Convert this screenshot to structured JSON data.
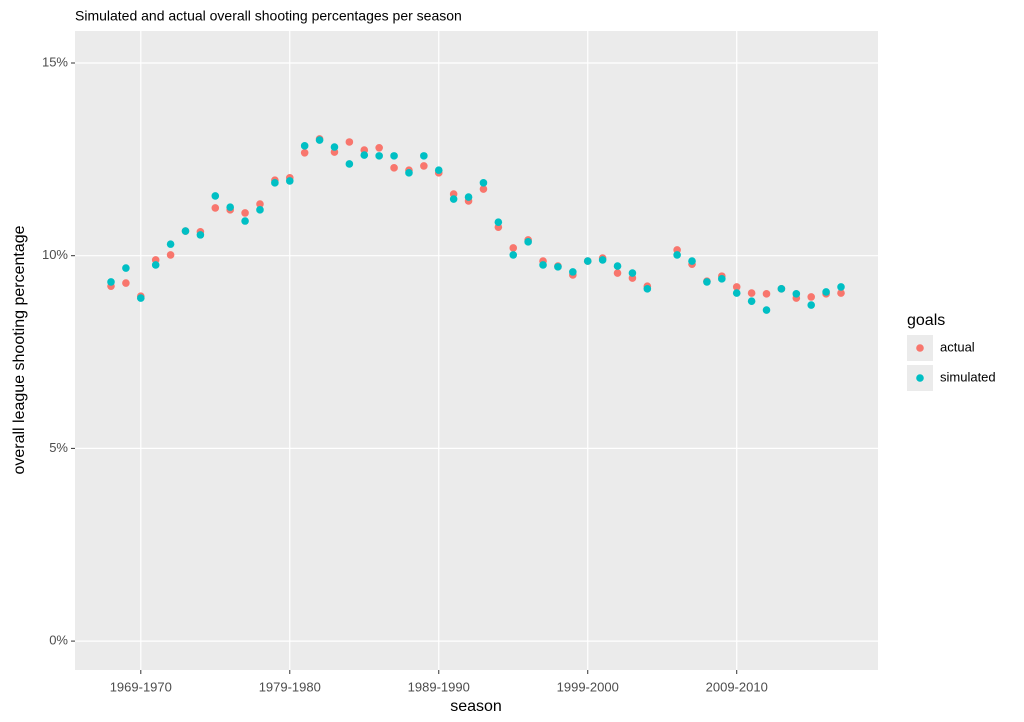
{
  "chart_data": {
    "type": "scatter",
    "title": "Simulated and actual overall shooting percentages per season",
    "x_label": "season",
    "y_label": "overall league shooting percentage",
    "legend_title": "goals",
    "categories": [
      null,
      null,
      "1969-1970",
      null,
      null,
      null,
      null,
      null,
      null,
      null,
      null,
      null,
      "1979-1980",
      null,
      null,
      null,
      null,
      null,
      null,
      null,
      null,
      null,
      "1989-1990",
      null,
      null,
      null,
      null,
      null,
      null,
      null,
      null,
      null,
      "1999-2000",
      null,
      null,
      null,
      null,
      null,
      null,
      null,
      null,
      null,
      "2009-2010",
      null,
      null,
      null,
      null,
      null,
      null,
      null
    ],
    "series": [
      {
        "name": "actual",
        "color": "#F8766D",
        "values": [
          9.21,
          9.29,
          8.95,
          9.89,
          10.02,
          10.64,
          10.62,
          11.24,
          11.19,
          11.11,
          11.34,
          11.96,
          12.02,
          12.67,
          13.03,
          12.69,
          12.95,
          12.74,
          12.8,
          12.28,
          12.22,
          12.33,
          12.15,
          11.6,
          11.42,
          11.73,
          10.74,
          10.2,
          10.41,
          9.86,
          9.73,
          9.5,
          9.86,
          9.94,
          9.55,
          9.42,
          9.21,
          null,
          10.15,
          9.78,
          9.34,
          9.47,
          9.19,
          9.03,
          9.01,
          9.14,
          8.9,
          8.93,
          9.01,
          9.03
        ]
      },
      {
        "name": "simulated",
        "color": "#00BFC4",
        "values": [
          9.32,
          9.68,
          8.9,
          9.76,
          10.3,
          10.64,
          10.54,
          11.55,
          11.26,
          10.9,
          11.19,
          11.89,
          11.94,
          12.85,
          13.0,
          12.82,
          12.38,
          12.61,
          12.59,
          12.59,
          12.15,
          12.59,
          12.22,
          11.47,
          11.52,
          11.89,
          10.87,
          10.02,
          10.36,
          9.76,
          9.71,
          9.58,
          9.86,
          9.89,
          9.73,
          9.55,
          9.14,
          null,
          10.02,
          9.86,
          9.32,
          9.4,
          9.03,
          8.82,
          8.59,
          9.14,
          9.01,
          8.72,
          9.06,
          9.19
        ]
      }
    ],
    "ylim": [
      -0.75,
      15.83
    ],
    "yticks": [
      {
        "value": 0,
        "label": "0%"
      },
      {
        "value": 5,
        "label": "5%"
      },
      {
        "value": 10,
        "label": "10%"
      },
      {
        "value": 15,
        "label": "15%"
      }
    ],
    "grid": true
  }
}
